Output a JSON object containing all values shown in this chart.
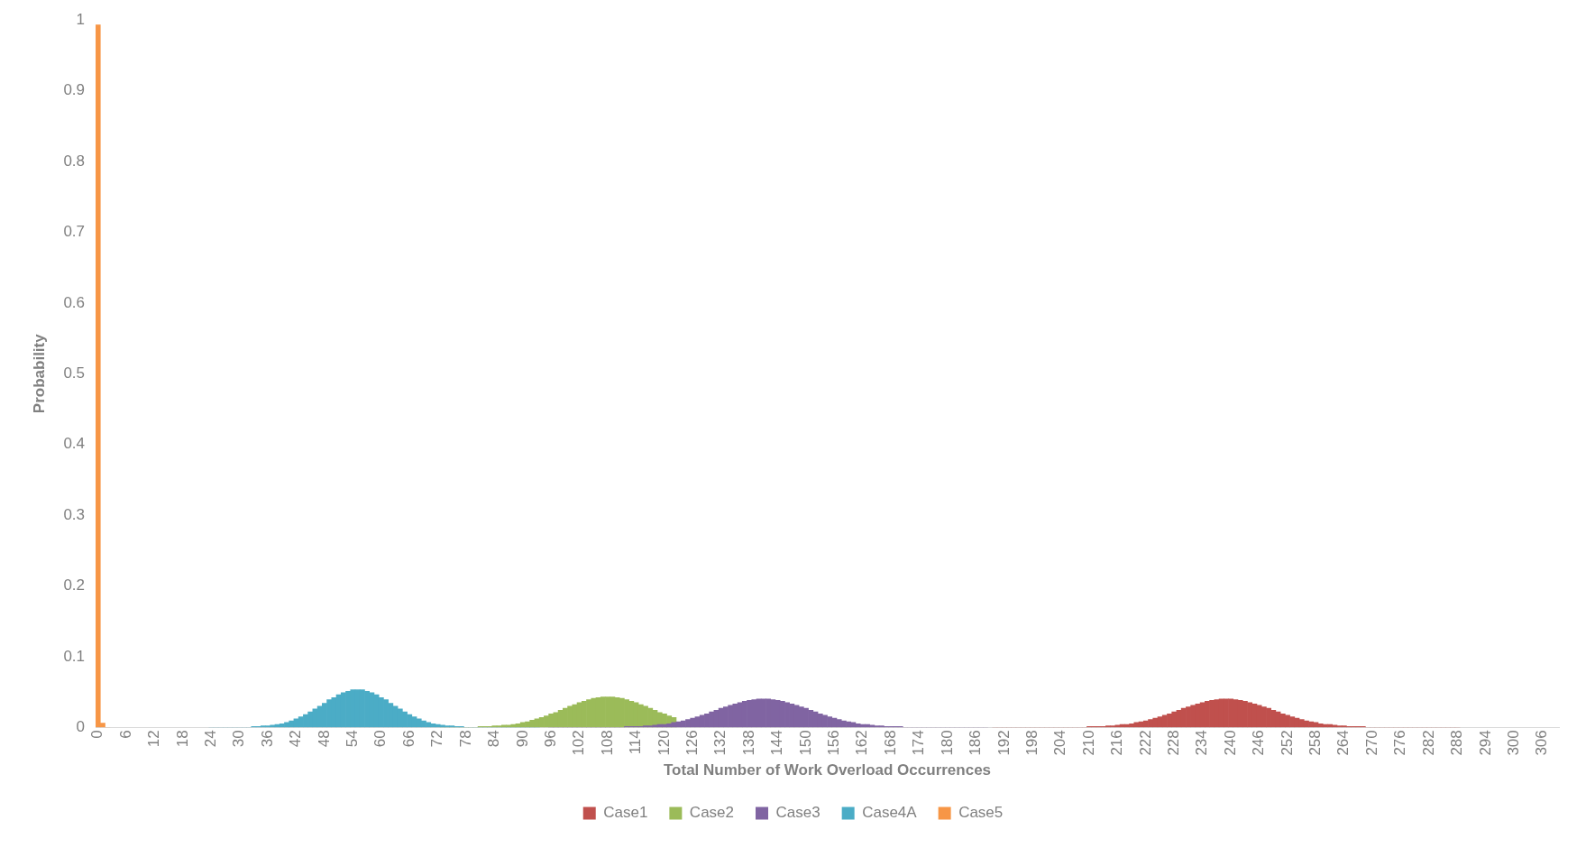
{
  "chart_data": {
    "type": "bar",
    "xlabel": "Total Number of Work Overload Occurrences",
    "ylabel": "Probability",
    "xlim": [
      -0.5,
      309.5
    ],
    "xticks": [
      0,
      6,
      12,
      18,
      24,
      30,
      36,
      42,
      48,
      54,
      60,
      66,
      72,
      78,
      84,
      90,
      96,
      102,
      108,
      114,
      120,
      126,
      132,
      138,
      144,
      150,
      156,
      162,
      168,
      174,
      180,
      186,
      192,
      198,
      204,
      210,
      216,
      222,
      228,
      234,
      240,
      246,
      252,
      258,
      264,
      270,
      276,
      282,
      288,
      294,
      300,
      306
    ],
    "ylim": [
      0,
      1
    ],
    "yticks": [
      0,
      0.1,
      0.2,
      0.3,
      0.4,
      0.5,
      0.6,
      0.7,
      0.8,
      0.9,
      1
    ],
    "grid": false,
    "legend": "bottom",
    "series": [
      {
        "name": "Case1",
        "color": "#c0504d",
        "x": [
          190,
          191,
          192,
          193,
          194,
          195,
          196,
          197,
          198,
          199,
          200,
          201,
          202,
          203,
          204,
          205,
          206,
          207,
          208,
          209,
          210,
          211,
          212,
          213,
          214,
          215,
          216,
          217,
          218,
          219,
          220,
          221,
          222,
          223,
          224,
          225,
          226,
          227,
          228,
          229,
          230,
          231,
          232,
          233,
          234,
          235,
          236,
          237,
          238,
          239,
          240,
          241,
          242,
          243,
          244,
          245,
          246,
          247,
          248,
          249,
          250,
          251,
          252,
          253,
          254,
          255,
          256,
          257,
          258,
          259,
          260,
          261,
          262,
          263,
          264,
          265,
          266,
          267,
          268,
          269,
          270,
          271,
          272,
          273,
          274,
          275,
          276,
          277,
          278,
          279,
          280,
          281,
          282,
          283,
          284,
          285,
          286,
          287,
          288
        ],
        "values": [
          0,
          0,
          0,
          0,
          0,
          0,
          0,
          0,
          0,
          0,
          0,
          0,
          0,
          0,
          0,
          0,
          0,
          0,
          0,
          0,
          0.001,
          0.001,
          0.001,
          0.001,
          0.002,
          0.002,
          0.003,
          0.004,
          0.004,
          0.005,
          0.007,
          0.008,
          0.009,
          0.011,
          0.013,
          0.015,
          0.017,
          0.019,
          0.022,
          0.024,
          0.027,
          0.029,
          0.031,
          0.033,
          0.035,
          0.037,
          0.038,
          0.039,
          0.04,
          0.04,
          0.04,
          0.039,
          0.038,
          0.037,
          0.035,
          0.033,
          0.031,
          0.029,
          0.027,
          0.024,
          0.022,
          0.019,
          0.017,
          0.015,
          0.013,
          0.011,
          0.009,
          0.008,
          0.007,
          0.005,
          0.004,
          0.004,
          0.003,
          0.002,
          0.002,
          0.001,
          0.001,
          0.001,
          0.001,
          0,
          0,
          0,
          0,
          0,
          0,
          0,
          0,
          0,
          0,
          0,
          0,
          0,
          0,
          0,
          0,
          0,
          0,
          0,
          0
        ]
      },
      {
        "name": "Case2",
        "color": "#9bbb59",
        "x": [
          73,
          74,
          75,
          76,
          77,
          78,
          79,
          80,
          81,
          82,
          83,
          84,
          85,
          86,
          87,
          88,
          89,
          90,
          91,
          92,
          93,
          94,
          95,
          96,
          97,
          98,
          99,
          100,
          101,
          102,
          103,
          104,
          105,
          106,
          107,
          108,
          109,
          110,
          111,
          112,
          113,
          114,
          115,
          116,
          117,
          118,
          119,
          120,
          121,
          122
        ],
        "values": [
          0,
          0,
          0,
          0,
          0,
          0,
          0,
          0,
          0.001,
          0.001,
          0.001,
          0.002,
          0.002,
          0.003,
          0.003,
          0.004,
          0.005,
          0.007,
          0.008,
          0.01,
          0.012,
          0.014,
          0.016,
          0.019,
          0.021,
          0.024,
          0.027,
          0.03,
          0.032,
          0.035,
          0.037,
          0.039,
          0.041,
          0.042,
          0.043,
          0.043,
          0.043,
          0.042,
          0.041,
          0.039,
          0.037,
          0.035,
          0.032,
          0.03,
          0.027,
          0.024,
          0.021,
          0.019,
          0.016,
          0.014
        ]
      },
      {
        "name": "Case3",
        "color": "#8064a2",
        "x": [
          96,
          97,
          98,
          99,
          100,
          101,
          102,
          103,
          104,
          105,
          106,
          107,
          108,
          109,
          110,
          111,
          112,
          113,
          114,
          115,
          116,
          117,
          118,
          119,
          120,
          121,
          122,
          123,
          124,
          125,
          126,
          127,
          128,
          129,
          130,
          131,
          132,
          133,
          134,
          135,
          136,
          137,
          138,
          139,
          140,
          141,
          142,
          143,
          144,
          145,
          146,
          147,
          148,
          149,
          150,
          151,
          152,
          153,
          154,
          155,
          156,
          157,
          158,
          159,
          160,
          161,
          162,
          163,
          164,
          165,
          166,
          167,
          168,
          169,
          170,
          171,
          172,
          173,
          174,
          175,
          176,
          177,
          178,
          179,
          180,
          181,
          182,
          183,
          184,
          185,
          186,
          187,
          188
        ],
        "values": [
          0,
          0,
          0,
          0,
          0,
          0,
          0,
          0,
          0,
          0,
          0,
          0,
          0,
          0,
          0,
          0,
          0.001,
          0.001,
          0.001,
          0.001,
          0.002,
          0.002,
          0.003,
          0.004,
          0.004,
          0.005,
          0.007,
          0.008,
          0.009,
          0.011,
          0.013,
          0.015,
          0.017,
          0.019,
          0.022,
          0.024,
          0.027,
          0.029,
          0.031,
          0.033,
          0.035,
          0.037,
          0.038,
          0.039,
          0.04,
          0.04,
          0.04,
          0.039,
          0.038,
          0.037,
          0.035,
          0.033,
          0.031,
          0.029,
          0.027,
          0.024,
          0.022,
          0.019,
          0.017,
          0.015,
          0.013,
          0.011,
          0.009,
          0.008,
          0.007,
          0.005,
          0.004,
          0.004,
          0.003,
          0.002,
          0.002,
          0.001,
          0.001,
          0.001,
          0.001,
          0,
          0,
          0,
          0,
          0,
          0,
          0,
          0,
          0,
          0,
          0,
          0,
          0,
          0,
          0,
          0,
          0,
          0
        ]
      },
      {
        "name": "Case4A",
        "color": "#4bacc6",
        "x": [
          24,
          25,
          26,
          27,
          28,
          29,
          30,
          31,
          32,
          33,
          34,
          35,
          36,
          37,
          38,
          39,
          40,
          41,
          42,
          43,
          44,
          45,
          46,
          47,
          48,
          49,
          50,
          51,
          52,
          53,
          54,
          55,
          56,
          57,
          58,
          59,
          60,
          61,
          62,
          63,
          64,
          65,
          66,
          67,
          68,
          69,
          70,
          71,
          72,
          73,
          74,
          75,
          76,
          77,
          78,
          79,
          80,
          81,
          82,
          83,
          84,
          85,
          86,
          87,
          88,
          89,
          90,
          91,
          92,
          93
        ],
        "values": [
          0,
          0,
          0,
          0,
          0,
          0,
          0,
          0,
          0,
          0.001,
          0.001,
          0.002,
          0.002,
          0.003,
          0.004,
          0.005,
          0.007,
          0.009,
          0.012,
          0.015,
          0.018,
          0.022,
          0.026,
          0.03,
          0.034,
          0.039,
          0.042,
          0.046,
          0.049,
          0.051,
          0.053,
          0.053,
          0.053,
          0.051,
          0.049,
          0.046,
          0.042,
          0.039,
          0.034,
          0.03,
          0.026,
          0.022,
          0.018,
          0.015,
          0.012,
          0.009,
          0.007,
          0.005,
          0.004,
          0.003,
          0.002,
          0.002,
          0.001,
          0.001,
          0,
          0,
          0,
          0,
          0,
          0,
          0,
          0,
          0,
          0,
          0,
          0,
          0,
          0,
          0,
          0
        ]
      },
      {
        "name": "Case5",
        "color": "#f79646",
        "x": [
          0,
          1,
          2
        ],
        "values": [
          0.993,
          0.006,
          0
        ]
      }
    ]
  }
}
